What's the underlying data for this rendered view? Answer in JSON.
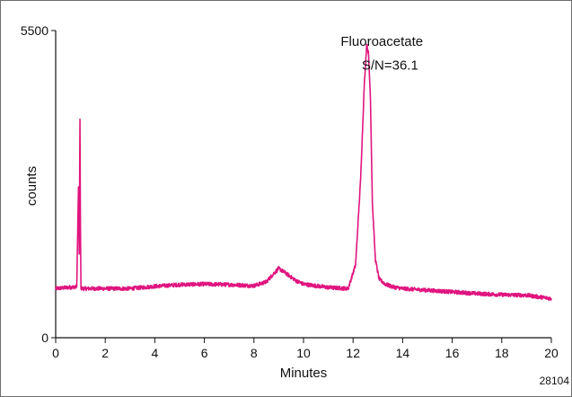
{
  "chart_data": {
    "type": "line",
    "title": "",
    "xlabel": "Minutes",
    "ylabel": "counts",
    "xlim": [
      0,
      20
    ],
    "ylim": [
      0,
      5500
    ],
    "x_ticks": [
      "0",
      "2",
      "4",
      "6",
      "8",
      "10",
      "12",
      "14",
      "16",
      "18",
      "20"
    ],
    "y_ticks": [
      "0",
      "5500"
    ],
    "grid": false,
    "legend": "none",
    "series_color": "#e0157f",
    "series": [
      {
        "x": [
          0,
          0.5,
          0.85,
          0.92,
          0.95,
          0.98,
          1.0,
          1.02,
          1.05,
          1.1,
          2,
          3,
          4,
          5,
          6,
          7,
          8,
          8.5,
          8.8,
          9.0,
          9.3,
          9.7,
          10,
          11,
          11.8,
          12.1,
          12.3,
          12.45,
          12.55,
          12.62,
          12.7,
          12.78,
          12.9,
          13.05,
          13.3,
          13.6,
          14,
          15,
          16,
          17,
          18,
          19,
          20
        ],
        "y": [
          880,
          900,
          910,
          2700,
          1500,
          3900,
          2000,
          900,
          880,
          880,
          880,
          880,
          920,
          950,
          960,
          950,
          930,
          1000,
          1150,
          1240,
          1150,
          1020,
          960,
          900,
          880,
          1300,
          2800,
          4500,
          5250,
          5100,
          4300,
          2400,
          1400,
          1050,
          960,
          910,
          880,
          850,
          820,
          790,
          770,
          760,
          700
        ]
      }
    ],
    "annotations": [
      {
        "text": "Fluoroacetate",
        "x": 11.5,
        "y": 5230
      },
      {
        "text": "S/N=36.1",
        "x": 12.35,
        "y": 4800
      }
    ],
    "figure_id": "28104"
  }
}
